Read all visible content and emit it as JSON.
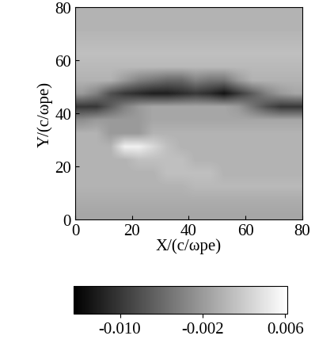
{
  "chart_data": {
    "type": "heatmap",
    "x_label": "X/(c/ωpe)",
    "y_label": "Y/(c/ωpe)",
    "xlim": [
      0,
      80
    ],
    "ylim": [
      0,
      80
    ],
    "xticks": [
      0,
      20,
      40,
      60,
      80
    ],
    "yticks": [
      0,
      20,
      40,
      60,
      80
    ],
    "color": "gray",
    "cells": [
      [
        -0.001,
        -0.001,
        -0.001,
        -0.001,
        -0.001,
        -0.001,
        -0.001,
        -0.001,
        -0.001,
        -0.001,
        -0.001,
        -0.001,
        -0.001,
        -0.001,
        -0.001,
        -0.001
      ],
      [
        -0.0005,
        -0.0005,
        -0.0005,
        -0.0005,
        -0.0005,
        -0.0005,
        -0.0005,
        -0.0005,
        -0.0005,
        -0.0005,
        -0.0005,
        -0.0005,
        -0.0005,
        -0.0005,
        -0.0005,
        -0.0005
      ],
      [
        0.0,
        0.0,
        0.0,
        0.0,
        0.0,
        0.0,
        0.0,
        0.0,
        0.0005,
        0.0005,
        0.0005,
        0.0005,
        0.0005,
        0.0005,
        0.0005,
        0.0005
      ],
      [
        0.0,
        0.0,
        0.0,
        0.0,
        0.0,
        0.0,
        0.001,
        0.001,
        0.001,
        0.001,
        0.0,
        0.0,
        0.0,
        0.0,
        0.0,
        0.0
      ],
      [
        0.0,
        0.0,
        0.0,
        0.0,
        0.001,
        0.001,
        0.001,
        0.001,
        0.0,
        0.0,
        0.0,
        0.0,
        0.0,
        0.0,
        0.0,
        0.0
      ],
      [
        0.0,
        0.0,
        0.0,
        0.005,
        0.005,
        0.003,
        0.001,
        0.0,
        0.0,
        0.0,
        0.0,
        0.0,
        0.0,
        0.0,
        0.0,
        0.0
      ],
      [
        0.0,
        0.0,
        -0.002,
        -0.002,
        -0.002,
        0.0,
        0.0,
        0.0,
        0.0,
        0.0,
        0.0,
        0.0,
        0.0,
        0.0,
        0.0,
        0.0
      ],
      [
        -0.003,
        -0.002,
        -0.002,
        -0.002,
        -0.002,
        -0.001,
        -0.001,
        -0.001,
        -0.001,
        -0.001,
        -0.001,
        -0.001,
        -0.001,
        -0.001,
        -0.001,
        -0.001
      ],
      [
        -0.01,
        -0.01,
        -0.007,
        -0.004,
        -0.002,
        -0.001,
        -0.001,
        -0.001,
        -0.001,
        -0.001,
        -0.001,
        -0.002,
        -0.005,
        -0.008,
        -0.01,
        -0.01
      ],
      [
        -0.002,
        -0.004,
        -0.008,
        -0.01,
        -0.011,
        -0.012,
        -0.012,
        -0.011,
        -0.01,
        -0.011,
        -0.013,
        -0.01,
        -0.007,
        -0.004,
        -0.002,
        -0.001
      ],
      [
        0.0,
        0.0,
        0.0,
        -0.002,
        -0.004,
        -0.005,
        -0.006,
        -0.006,
        -0.004,
        -0.005,
        -0.005,
        -0.002,
        0.0,
        0.0,
        0.0,
        0.0
      ],
      [
        0.0005,
        0.0005,
        0.0005,
        0.0005,
        0.0005,
        0.0005,
        0.0005,
        0.0005,
        0.0005,
        0.0005,
        0.0005,
        0.0005,
        0.0005,
        0.0005,
        0.0005,
        0.0005
      ],
      [
        0.001,
        0.001,
        0.001,
        0.001,
        0.001,
        0.001,
        0.001,
        0.001,
        0.001,
        0.001,
        0.001,
        0.001,
        0.001,
        0.001,
        0.001,
        0.001
      ],
      [
        0.0005,
        0.0005,
        0.0005,
        0.0005,
        0.0005,
        0.0005,
        0.0005,
        0.0005,
        0.0005,
        0.0005,
        0.0005,
        0.0005,
        0.0005,
        0.0005,
        0.0005,
        0.0005
      ],
      [
        0.0,
        0.0,
        0.0,
        0.0,
        0.0,
        0.0,
        0.0,
        0.0,
        0.0,
        0.0,
        0.0,
        0.0,
        0.0,
        0.0,
        0.0,
        0.0
      ],
      [
        0.0,
        0.0,
        0.0,
        0.0,
        0.0,
        0.0,
        0.0,
        0.0,
        0.0,
        0.0,
        0.0,
        0.0,
        0.0,
        0.0,
        0.0,
        0.0
      ]
    ],
    "color_range": [
      -0.0145,
      0.0062
    ],
    "colorbar_ticks": [
      {
        "value": -0.01,
        "label": "-0.010"
      },
      {
        "value": -0.002,
        "label": "-0.002"
      },
      {
        "value": 0.006,
        "label": "0.006"
      }
    ]
  }
}
